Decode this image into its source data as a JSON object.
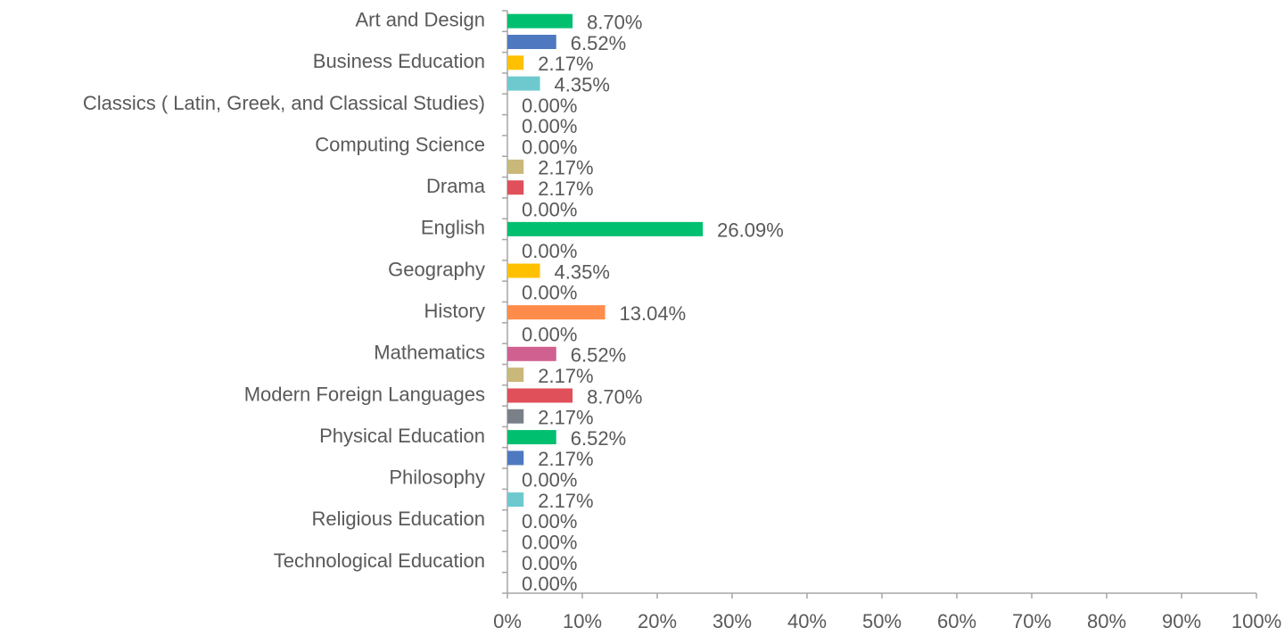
{
  "chart_data": {
    "type": "bar",
    "orientation": "horizontal",
    "categories": [
      "Art and Design",
      null,
      "Business Education",
      null,
      "Classics ( Latin, Greek, and Classical Studies)",
      null,
      "Computing Science",
      null,
      "Drama",
      null,
      "English",
      null,
      "Geography",
      null,
      "History",
      null,
      "Mathematics",
      null,
      "Modern Foreign Languages",
      null,
      "Physical Education",
      null,
      "Philosophy",
      null,
      "Religious Education",
      null,
      "Technological Education",
      null
    ],
    "values": [
      8.7,
      6.52,
      2.17,
      4.35,
      0,
      0,
      0,
      2.17,
      2.17,
      0,
      26.09,
      0,
      4.35,
      0,
      13.04,
      0,
      6.52,
      2.17,
      8.7,
      2.17,
      6.52,
      2.17,
      0,
      2.17,
      0,
      0,
      0,
      0
    ],
    "value_labels": [
      "8.70%",
      "6.52%",
      "2.17%",
      "4.35%",
      "0.00%",
      "0.00%",
      "0.00%",
      "2.17%",
      "2.17%",
      "0.00%",
      "26.09%",
      "0.00%",
      "4.35%",
      "0.00%",
      "13.04%",
      "0.00%",
      "6.52%",
      "2.17%",
      "8.70%",
      "2.17%",
      "6.52%",
      "2.17%",
      "0.00%",
      "2.17%",
      "0.00%",
      "0.00%",
      "0.00%",
      "0.00%"
    ],
    "colors": [
      "#00c070",
      "#4e79c0",
      "#ffc000",
      "#6ec9cf",
      "#ff8c4a",
      "#d0608f",
      "#c9b87a",
      "#c9b87a",
      "#e0505a",
      "#7a8088",
      "#00c070",
      "#4e79c0",
      "#ffc000",
      "#6ec9cf",
      "#ff8c4a",
      "#d0608f",
      "#d0608f",
      "#c9b87a",
      "#e0505a",
      "#7a8088",
      "#00c070",
      "#4e79c0",
      "#ffc000",
      "#6ec9cf",
      "#ff8c4a",
      "#d0608f",
      "#c9b87a",
      "#e0505a"
    ],
    "xlim": [
      0,
      100
    ],
    "xticks": [
      {
        "value": 0,
        "label": "0%"
      },
      {
        "value": 10,
        "label": "10%"
      },
      {
        "value": 20,
        "label": "20%"
      },
      {
        "value": 30,
        "label": "30%"
      },
      {
        "value": 40,
        "label": "40%"
      },
      {
        "value": 50,
        "label": "50%"
      },
      {
        "value": 60,
        "label": "60%"
      },
      {
        "value": 70,
        "label": "70%"
      },
      {
        "value": 80,
        "label": "80%"
      },
      {
        "value": 90,
        "label": "90%"
      },
      {
        "value": 100,
        "label": "100%"
      }
    ],
    "grid": false
  }
}
